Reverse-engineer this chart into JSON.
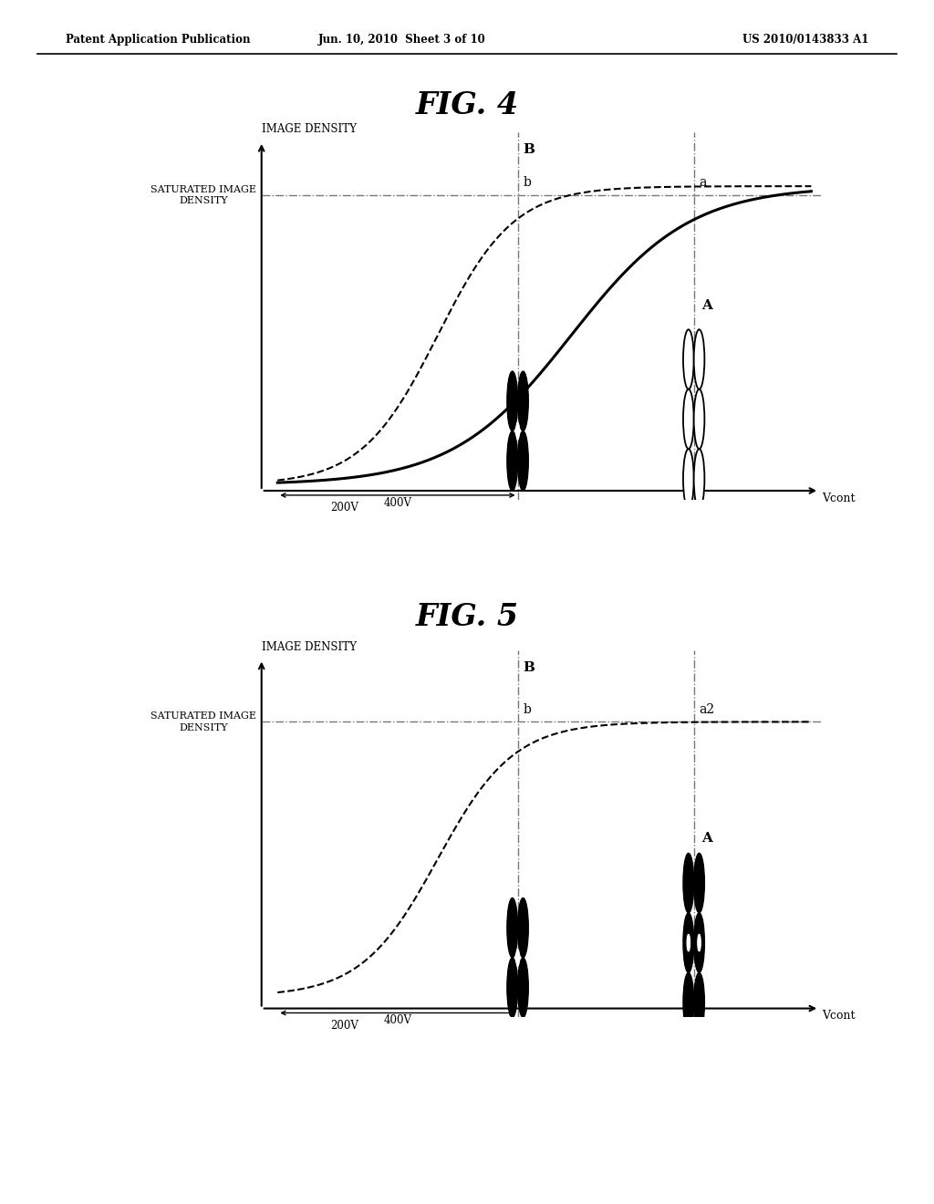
{
  "header_left": "Patent Application Publication",
  "header_mid": "Jun. 10, 2010  Sheet 3 of 10",
  "header_right": "US 2010/0143833 A1",
  "fig4_title": "FIG. 4",
  "fig5_title": "FIG. 5",
  "ylabel": "IMAGE DENSITY",
  "sat_label": "SATURATED IMAGE\nDENSITY",
  "xlabel": "Vcont",
  "label_400V": "400V",
  "label_200V": "200V",
  "fig4_B_label": "B",
  "fig4_b_label": "b",
  "fig4_a_label": "a",
  "fig4_A_label": "A",
  "fig5_B_label": "B",
  "fig5_b_label": "b",
  "fig5_a2_label": "a2",
  "fig5_A_label": "A",
  "bg_color": "#ffffff"
}
